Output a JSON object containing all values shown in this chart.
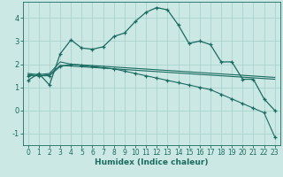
{
  "xlabel": "Humidex (Indice chaleur)",
  "ylabel": "",
  "bg_color": "#cce8e4",
  "grid_color": "#aad4ce",
  "line_color": "#1a6b60",
  "xlim": [
    -0.5,
    23.5
  ],
  "ylim": [
    -1.5,
    4.7
  ],
  "yticks": [
    -1,
    0,
    1,
    2,
    3,
    4
  ],
  "xticks": [
    0,
    1,
    2,
    3,
    4,
    5,
    6,
    7,
    8,
    9,
    10,
    11,
    12,
    13,
    14,
    15,
    16,
    17,
    18,
    19,
    20,
    21,
    22,
    23
  ],
  "series1_x": [
    0,
    1,
    2,
    3,
    4,
    5,
    6,
    7,
    8,
    9,
    10,
    11,
    12,
    13,
    14,
    15,
    16,
    17,
    18,
    19,
    20,
    21,
    22,
    23
  ],
  "series1_y": [
    1.3,
    1.6,
    1.1,
    2.45,
    3.05,
    2.7,
    2.65,
    2.75,
    3.2,
    3.35,
    3.85,
    4.25,
    4.45,
    4.35,
    3.7,
    2.9,
    3.0,
    2.85,
    2.1,
    2.1,
    1.35,
    1.35,
    0.5,
    0.0
  ],
  "series2_x": [
    0,
    1,
    2,
    3,
    4,
    5,
    6,
    7,
    8,
    9,
    10,
    11,
    12,
    13,
    14,
    15,
    16,
    17,
    18,
    19,
    20,
    21,
    22,
    23
  ],
  "series2_y": [
    1.6,
    1.55,
    1.6,
    2.1,
    2.0,
    1.97,
    1.94,
    1.91,
    1.88,
    1.85,
    1.82,
    1.79,
    1.76,
    1.73,
    1.7,
    1.67,
    1.64,
    1.61,
    1.58,
    1.55,
    1.52,
    1.49,
    1.46,
    1.43
  ],
  "series3_x": [
    0,
    1,
    2,
    3,
    4,
    5,
    6,
    7,
    8,
    9,
    10,
    11,
    12,
    13,
    14,
    15,
    16,
    17,
    18,
    19,
    20,
    21,
    22,
    23
  ],
  "series3_y": [
    1.55,
    1.5,
    1.55,
    1.95,
    1.92,
    1.89,
    1.86,
    1.83,
    1.8,
    1.77,
    1.74,
    1.71,
    1.68,
    1.65,
    1.62,
    1.59,
    1.56,
    1.53,
    1.5,
    1.47,
    1.44,
    1.41,
    1.38,
    1.35
  ],
  "series4_x": [
    0,
    1,
    2,
    3,
    4,
    5,
    6,
    7,
    8,
    9,
    10,
    11,
    12,
    13,
    14,
    15,
    16,
    17,
    18,
    19,
    20,
    21,
    22,
    23
  ],
  "series4_y": [
    1.5,
    1.5,
    1.5,
    1.9,
    2.0,
    1.95,
    1.9,
    1.85,
    1.8,
    1.7,
    1.6,
    1.5,
    1.4,
    1.3,
    1.2,
    1.1,
    1.0,
    0.9,
    0.7,
    0.5,
    0.3,
    0.1,
    -0.1,
    -1.15
  ],
  "marker_size": 3.0
}
